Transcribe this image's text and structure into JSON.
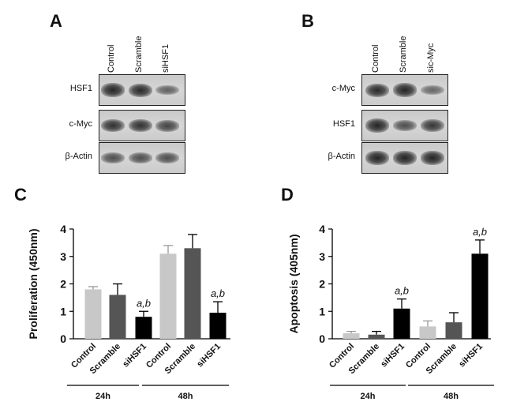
{
  "panels": {
    "A": {
      "letter": "A",
      "lanes": [
        "Control",
        "Scramble",
        "siHSF1"
      ],
      "rows": [
        {
          "label": "HSF1",
          "bands": [
            0.95,
            0.9,
            0.45
          ]
        },
        {
          "label": "c-Myc",
          "bands": [
            0.85,
            0.85,
            0.7
          ]
        },
        {
          "label": "β-Actin",
          "bands": [
            0.6,
            0.6,
            0.6
          ]
        }
      ]
    },
    "B": {
      "letter": "B",
      "lanes": [
        "Control",
        "Scramble",
        "sic-Myc"
      ],
      "rows": [
        {
          "label": "c-Myc",
          "bands": [
            0.9,
            0.95,
            0.4
          ]
        },
        {
          "label": "HSF1",
          "bands": [
            0.95,
            0.6,
            0.8
          ]
        },
        {
          "label": "β-Actin",
          "bands": [
            0.95,
            0.95,
            0.95
          ]
        }
      ]
    },
    "C": {
      "letter": "C"
    },
    "D": {
      "letter": "D"
    }
  },
  "chart_data": [
    {
      "type": "bar",
      "ylabel": "Proliferation (450nm)",
      "ylim": [
        0,
        4
      ],
      "yticks": [
        "0",
        "1",
        "2",
        "3",
        "4"
      ],
      "categories": [
        "Control",
        "Scramble",
        "siHSF1",
        "Control",
        "Scramble",
        "siHSF1"
      ],
      "values": [
        1.8,
        1.6,
        0.8,
        3.1,
        3.3,
        0.95
      ],
      "errors": [
        0.1,
        0.4,
        0.2,
        0.3,
        0.5,
        0.4
      ],
      "colors": [
        "#c8c8c8",
        "#555555",
        "#000000",
        "#c8c8c8",
        "#555555",
        "#000000"
      ],
      "annotations": [
        "",
        "",
        "a,b",
        "",
        "",
        "a,b"
      ],
      "groups": [
        "24h",
        "48h"
      ]
    },
    {
      "type": "bar",
      "ylabel": "Apoptosis (405nm)",
      "ylim": [
        0,
        4
      ],
      "yticks": [
        "0",
        "1",
        "2",
        "3",
        "4"
      ],
      "categories": [
        "Control",
        "Scramble",
        "siHSF1",
        "Control",
        "Scramble",
        "siHSF1"
      ],
      "values": [
        0.2,
        0.15,
        1.1,
        0.45,
        0.6,
        3.1
      ],
      "errors": [
        0.07,
        0.12,
        0.35,
        0.2,
        0.35,
        0.5
      ],
      "colors": [
        "#c8c8c8",
        "#555555",
        "#000000",
        "#c8c8c8",
        "#555555",
        "#000000"
      ],
      "annotations": [
        "",
        "",
        "a,b",
        "",
        "",
        "a,b"
      ],
      "groups": [
        "24h",
        "48h"
      ]
    }
  ]
}
